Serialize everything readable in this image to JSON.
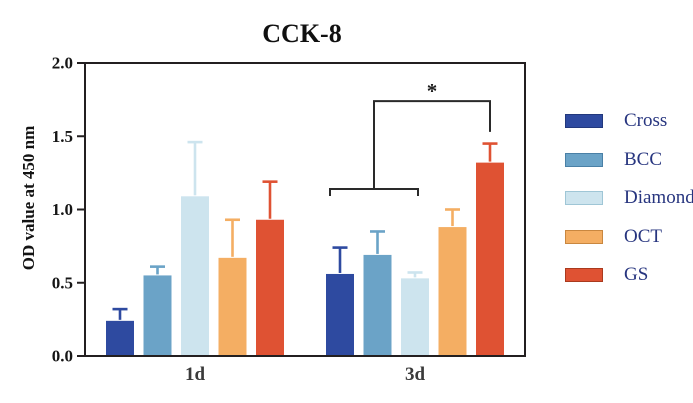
{
  "chart_data": {
    "type": "bar",
    "title": "CCK-8",
    "xlabel": "",
    "ylabel": "OD value at 450 nm",
    "ylim": [
      0.0,
      2.0
    ],
    "yticks": [
      0.0,
      0.5,
      1.0,
      1.5,
      2.0
    ],
    "categories": [
      "1d",
      "3d"
    ],
    "grid": false,
    "legend_position": "right",
    "series": [
      {
        "name": "Cross",
        "color": "#2e4aa0",
        "edge": "#22387d",
        "values": [
          0.24,
          0.56
        ],
        "errors_up": [
          0.08,
          0.18
        ]
      },
      {
        "name": "BCC",
        "color": "#6ba3c7",
        "edge": "#4a80a6",
        "values": [
          0.55,
          0.69
        ],
        "errors_up": [
          0.06,
          0.16
        ]
      },
      {
        "name": "Diamond",
        "color": "#cde4ee",
        "edge": "#9fc6d6",
        "values": [
          1.09,
          0.53
        ],
        "errors_up": [
          0.37,
          0.04
        ]
      },
      {
        "name": "OCT",
        "color": "#f4ae63",
        "edge": "#c9873f",
        "values": [
          0.67,
          0.88
        ],
        "errors_up": [
          0.26,
          0.12
        ]
      },
      {
        "name": "GS",
        "color": "#df5233",
        "edge": "#aa3a1e",
        "values": [
          0.93,
          1.32
        ],
        "errors_up": [
          0.26,
          0.13
        ]
      }
    ],
    "annotation": {
      "label": "*",
      "category": "3d",
      "lower_bracket": {
        "from_series": "Cross",
        "to_series": "Diamond",
        "height": 1.14
      },
      "upper_line": {
        "to_series": "GS",
        "height": 1.74,
        "right_drop_to": 1.53
      }
    },
    "axis_color": "#231f20",
    "bracket_color": "#2a2a2a"
  }
}
